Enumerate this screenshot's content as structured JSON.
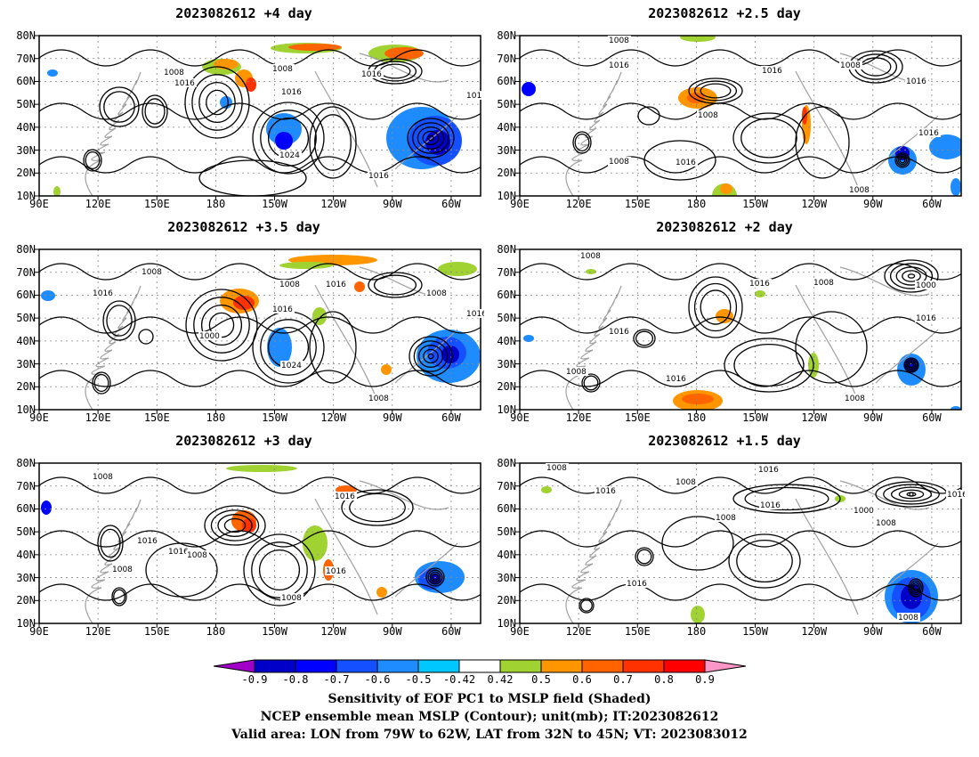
{
  "panels": [
    {
      "id": "p1",
      "title": "2023082612 +4 day"
    },
    {
      "id": "p2",
      "title": "2023082612 +2.5 day"
    },
    {
      "id": "p3",
      "title": "2023082612 +3.5 day"
    },
    {
      "id": "p4",
      "title": "2023082612 +2 day"
    },
    {
      "id": "p5",
      "title": "2023082612 +3 day"
    },
    {
      "id": "p6",
      "title": "2023082612 +1.5 day"
    }
  ],
  "lat_ticks": [
    "80N",
    "70N",
    "60N",
    "50N",
    "40N",
    "30N",
    "20N",
    "10N"
  ],
  "lon_ticks": [
    "90E",
    "120E",
    "150E",
    "180",
    "150W",
    "120W",
    "90W",
    "60W"
  ],
  "contour_labels": {
    "p1": [
      "1008",
      "1016",
      "1008",
      "1016",
      "1016",
      "1024",
      "1016",
      "101"
    ],
    "p2": [
      "1008",
      "1016",
      "1008",
      "1016",
      "1016",
      "1008",
      "1016",
      "1008",
      "1008",
      "1016"
    ],
    "p3": [
      "1008",
      "1016",
      "1000",
      "1016",
      "1008",
      "1016",
      "1024",
      "1008",
      "1016",
      "1008"
    ],
    "p4": [
      "1008",
      "1016",
      "1008",
      "1016",
      "1008",
      "1016",
      "1000",
      "1016",
      "1008"
    ],
    "p5": [
      "1008",
      "1016",
      "1008",
      "1016",
      "1008",
      "1016",
      "1016",
      "1008"
    ],
    "p6": [
      "1008",
      "1016",
      "1008",
      "1016",
      "1016",
      "1008",
      "1000",
      "1016",
      "1008",
      "1016",
      "1008"
    ]
  },
  "colorbar": {
    "labels": [
      "-0.9",
      "-0.8",
      "-0.7",
      "-0.6",
      "-0.5",
      "-0.42",
      "0.42",
      "0.5",
      "0.6",
      "0.7",
      "0.8",
      "0.9"
    ],
    "colors": [
      "#a000c8",
      "#0000c8",
      "#0000ff",
      "#1450ff",
      "#1e8cff",
      "#00c8ff",
      "#ffffff",
      "#a0d232",
      "#ff9600",
      "#ff6400",
      "#ff3200",
      "#ff0000",
      "#ff96c8"
    ]
  },
  "captions": {
    "line1": "Sensitivity of EOF PC1 to MSLP field (Shaded)",
    "line2": "NCEP ensemble mean MSLP (Contour); unit(mb); IT:2023082612",
    "line3": "Valid area: LON from 79W to 62W, LAT from 32N to 45N; VT: 2023083012"
  }
}
